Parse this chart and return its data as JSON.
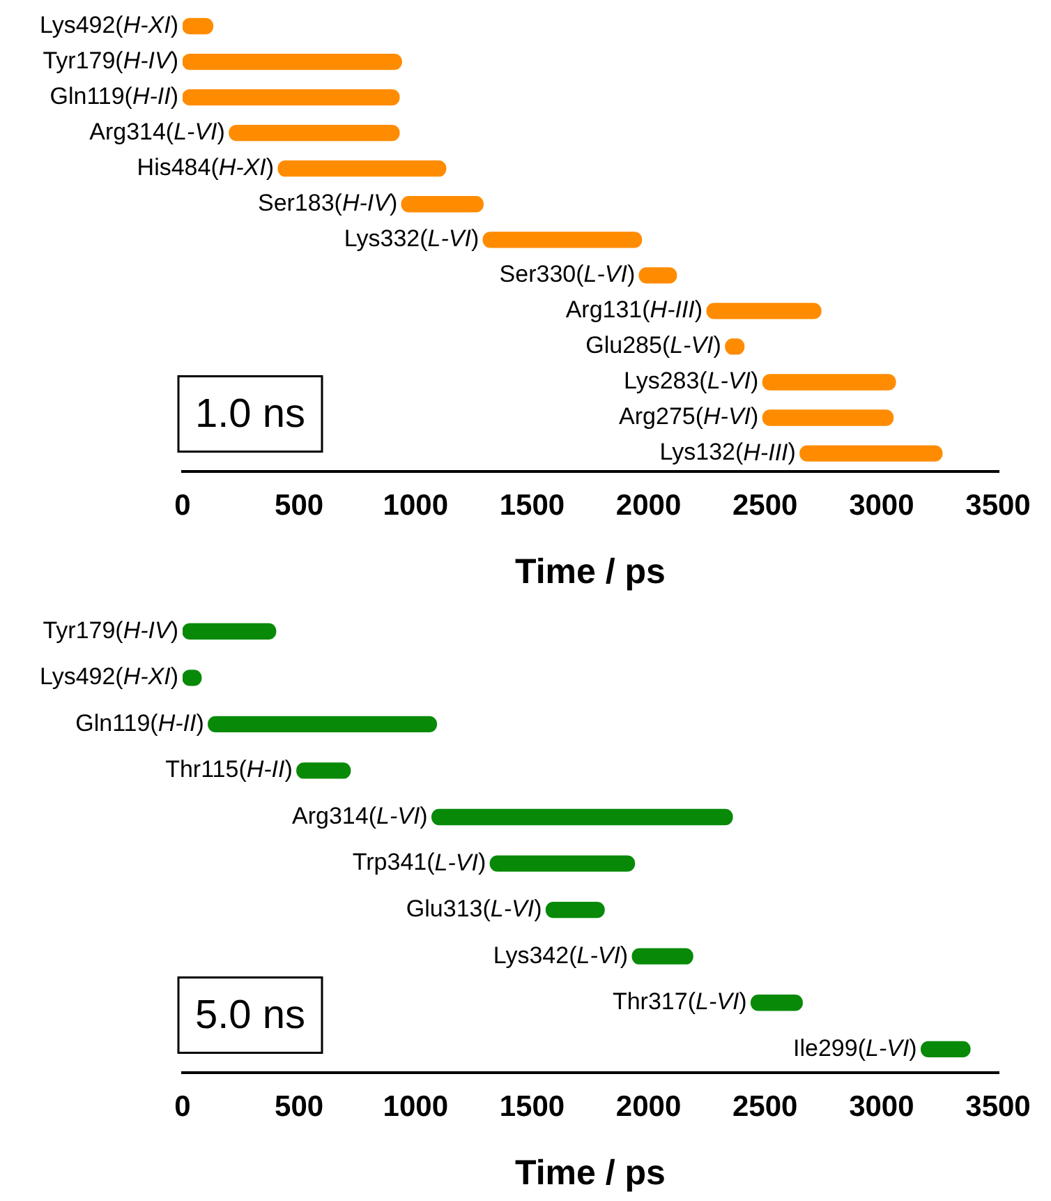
{
  "chart_data": [
    {
      "type": "bar",
      "orientation": "horizontal",
      "xlabel": "Time / ps",
      "annotations": [
        "1.0 ns"
      ],
      "categories": [
        "Lys492(H-XI)",
        "Tyr179(H-IV)",
        "Gln119(H-II)",
        "Arg314(L-VI)",
        "His484(H-XI)",
        "Ser183(H-IV)",
        "Lys332(L-VI)",
        "Ser330(L-VI)",
        "Arg131(H-III)",
        "Glu285(L-VI)",
        "Lys283(L-VI)",
        "Arg275(H-VI)",
        "Lys132(H-III)"
      ],
      "base": [
        0,
        0,
        0,
        200,
        410,
        940,
        1290,
        1960,
        2250,
        2330,
        2490,
        2490,
        2650
      ],
      "values": [
        130,
        940,
        930,
        730,
        720,
        350,
        680,
        160,
        490,
        80,
        570,
        560,
        610
      ],
      "color": "#ff8c00",
      "xlim": [
        0,
        3500
      ],
      "xticks": [
        0,
        500,
        1000,
        1500,
        2000,
        2500,
        3000,
        3500
      ]
    },
    {
      "type": "bar",
      "orientation": "horizontal",
      "xlabel": "Time / ps",
      "annotations": [
        "5.0 ns"
      ],
      "categories": [
        "Tyr179(H-IV)",
        "Lys492(H-XI)",
        "Gln119(H-II)",
        "Thr115(H-II)",
        "Arg314(L-VI)",
        "Trp341(L-VI)",
        "Glu313(L-VI)",
        "Lys342(L-VI)",
        "Thr317(L-VI)",
        "Ile299(L-VI)"
      ],
      "base": [
        0,
        0,
        110,
        490,
        1070,
        1320,
        1560,
        1930,
        2440,
        3170
      ],
      "values": [
        400,
        80,
        980,
        230,
        1290,
        620,
        250,
        260,
        220,
        210
      ],
      "color": "#088a08",
      "xlim": [
        0,
        3500
      ],
      "xticks": [
        0,
        500,
        1000,
        1500,
        2000,
        2500,
        3000,
        3500
      ]
    }
  ]
}
